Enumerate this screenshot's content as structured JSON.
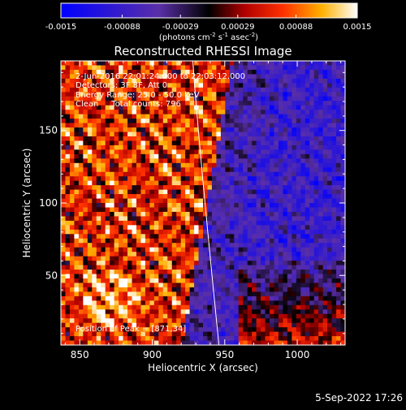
{
  "colorbar": {
    "min": -0.0015,
    "max": 0.0015,
    "tick_labels": [
      "-0.0015",
      "-0.00088",
      "-0.00029",
      "0.00029",
      "0.00088",
      "0.0015"
    ],
    "units_prefix": "(photons cm",
    "units_exp1": "-2",
    "units_mid": " s",
    "units_exp2": "-1",
    "units_mid2": " asec",
    "units_exp3": "-2",
    "units_suffix": ")",
    "colormap": "blue-purple-black-red-orange-yellow-white"
  },
  "chart_data": {
    "type": "heatmap",
    "title": "Reconstructed RHESSI Image",
    "xlabel": "Heliocentric X (arcsec)",
    "ylabel": "Heliocentric Y (arcsec)",
    "xlim": [
      837,
      1033
    ],
    "ylim": [
      2,
      198
    ],
    "x_ticks": [
      850,
      900,
      950,
      1000
    ],
    "y_ticks": [
      50,
      100,
      150
    ],
    "annotations": [
      "2-Jun-2016 22:01:24.000 to 22:03:12.000",
      "Detectors: 3F 8F, Att 0",
      "Energy Range: 25.0 - 50.0 keV",
      "Clean     Total counts: 796",
      "Position of Peak = [871,34]"
    ],
    "limb_line_color": "#ffffff",
    "peak_position": [
      871,
      34
    ]
  },
  "footer": {
    "date": "5-Sep-2022 17:26"
  }
}
